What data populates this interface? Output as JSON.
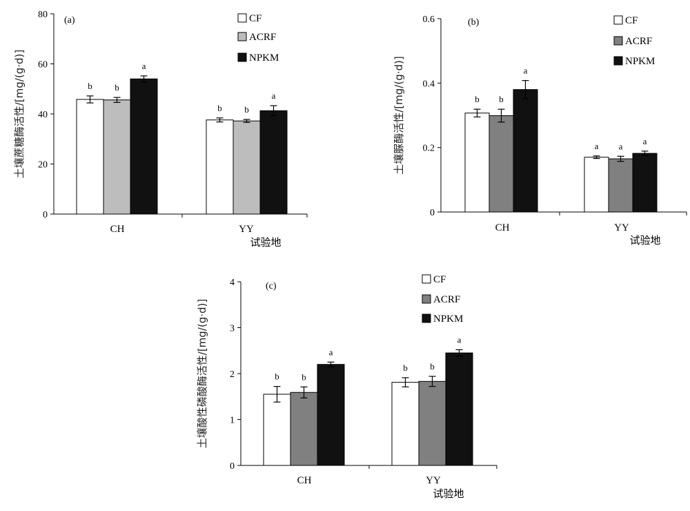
{
  "chart_data": [
    {
      "type": "bar",
      "panel_label": "(a)",
      "categories": [
        "CH",
        "YY"
      ],
      "xlabel": "试验地",
      "ylabel": "土壤蔗糖酶活性/[mg/(g·d)]",
      "ylim": [
        0,
        80
      ],
      "yticks": [
        0,
        20,
        40,
        60,
        80
      ],
      "ytick_labels": [
        "0",
        "20",
        "40",
        "60",
        "80"
      ],
      "series": [
        {
          "name": "CF",
          "values": [
            45.8,
            37.6
          ],
          "errors": [
            1.4,
            0.8
          ],
          "letters": [
            "b",
            "b"
          ]
        },
        {
          "name": "ACRF",
          "values": [
            45.6,
            37.2
          ],
          "errors": [
            1.0,
            0.6
          ],
          "letters": [
            "b",
            "b"
          ]
        },
        {
          "name": "NPKM",
          "values": [
            54.0,
            41.3
          ],
          "errors": [
            1.2,
            2.0
          ],
          "letters": [
            "a",
            "a"
          ]
        }
      ],
      "colors": [
        "#ffffff",
        "#bdbdbd",
        "#111111"
      ],
      "legend_position": "top-right",
      "grid": false
    },
    {
      "type": "bar",
      "panel_label": "(b)",
      "categories": [
        "CH",
        "YY"
      ],
      "xlabel": "试验地",
      "ylabel": "土壤脲酶活性/[mg/(g·d)]",
      "ylim": [
        0,
        0.6
      ],
      "yticks": [
        0,
        0.2,
        0.4,
        0.6
      ],
      "ytick_labels": [
        "0",
        "0.2",
        "0.4",
        "0.6"
      ],
      "series": [
        {
          "name": "CF",
          "values": [
            0.307,
            0.17
          ],
          "errors": [
            0.012,
            0.004
          ],
          "letters": [
            "b",
            "a"
          ]
        },
        {
          "name": "ACRF",
          "values": [
            0.299,
            0.165
          ],
          "errors": [
            0.02,
            0.008
          ],
          "letters": [
            "b",
            "a"
          ]
        },
        {
          "name": "NPKM",
          "values": [
            0.38,
            0.182
          ],
          "errors": [
            0.028,
            0.007
          ],
          "letters": [
            "a",
            "a"
          ]
        }
      ],
      "colors": [
        "#ffffff",
        "#808080",
        "#111111"
      ],
      "legend_position": "top-right",
      "grid": false
    },
    {
      "type": "bar",
      "panel_label": "(c)",
      "categories": [
        "CH",
        "YY"
      ],
      "xlabel": "试验地",
      "ylabel": "土壤酸性磷酸酶活性/[mg/(g·d)]",
      "ylim": [
        0,
        4
      ],
      "yticks": [
        0,
        1,
        2,
        3,
        4
      ],
      "ytick_labels": [
        "0",
        "1",
        "2",
        "3",
        "4"
      ],
      "series": [
        {
          "name": "CF",
          "values": [
            1.55,
            1.81
          ],
          "errors": [
            0.17,
            0.1
          ],
          "letters": [
            "b",
            "b"
          ]
        },
        {
          "name": "ACRF",
          "values": [
            1.59,
            1.83
          ],
          "errors": [
            0.12,
            0.11
          ],
          "letters": [
            "b",
            "b"
          ]
        },
        {
          "name": "NPKM",
          "values": [
            2.2,
            2.45
          ],
          "errors": [
            0.05,
            0.07
          ],
          "letters": [
            "a",
            "a"
          ]
        }
      ],
      "colors": [
        "#ffffff",
        "#808080",
        "#111111"
      ],
      "legend_position": "top-right",
      "grid": false
    }
  ]
}
